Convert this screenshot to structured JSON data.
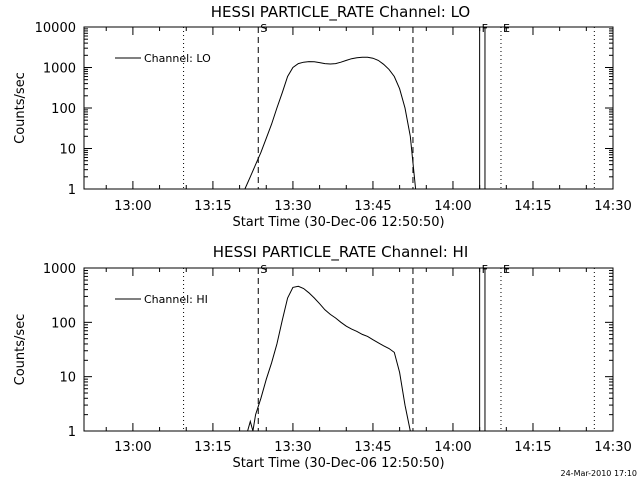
{
  "timestamp": "24-Mar-2010 17:10",
  "chart_data": [
    {
      "type": "line",
      "title": "HESSI PARTICLE_RATE Channel: LO",
      "xlabel": "Start Time (30-Dec-06 12:50:50)",
      "ylabel": "Counts/sec",
      "xlim": [
        "12:50:50",
        "14:30"
      ],
      "ylim": [
        1,
        10000
      ],
      "yscale": "log",
      "xticks": [
        "13:00",
        "13:15",
        "13:30",
        "13:45",
        "14:00",
        "14:15",
        "14:30"
      ],
      "yticks": [
        "1",
        "10",
        "100",
        "1000",
        "10000"
      ],
      "grid": false,
      "legend": "top-left",
      "series": [
        {
          "name": "Channel: LO",
          "x": [
            "13:21",
            "13:22",
            "13:23",
            "13:24",
            "13:25",
            "13:26",
            "13:27",
            "13:28",
            "13:29",
            "13:30",
            "13:31",
            "13:32",
            "13:33",
            "13:34",
            "13:35",
            "13:36",
            "13:37",
            "13:38",
            "13:39",
            "13:40",
            "13:41",
            "13:42",
            "13:43",
            "13:44",
            "13:45",
            "13:46",
            "13:47",
            "13:48",
            "13:49",
            "13:50",
            "13:51",
            "13:52",
            "13:53"
          ],
          "values": [
            1,
            2,
            4,
            8,
            18,
            40,
            100,
            240,
            600,
            1000,
            1250,
            1350,
            1400,
            1380,
            1320,
            1250,
            1220,
            1250,
            1350,
            1500,
            1650,
            1750,
            1800,
            1800,
            1700,
            1500,
            1200,
            900,
            600,
            300,
            100,
            20,
            1
          ]
        }
      ],
      "vertical_markers": [
        {
          "label": "",
          "time": "12:50:50",
          "style": "dotted"
        },
        {
          "label": "S",
          "time": "13:23:30",
          "style": "dashed"
        },
        {
          "label": "",
          "time": "13:52:30",
          "style": "dashed"
        },
        {
          "label": "",
          "time": "13:09:30",
          "style": "dotted"
        },
        {
          "label": "F",
          "time": "14:05:00",
          "style": "solid"
        },
        {
          "label": "",
          "time": "14:06:00",
          "style": "solid"
        },
        {
          "label": "E",
          "time": "14:09:00",
          "style": "dotted"
        },
        {
          "label": "",
          "time": "14:26:30",
          "style": "dotted"
        }
      ]
    },
    {
      "type": "line",
      "title": "HESSI PARTICLE_RATE Channel: HI",
      "xlabel": "Start Time (30-Dec-06 12:50:50)",
      "ylabel": "Counts/sec",
      "xlim": [
        "12:50:50",
        "14:30"
      ],
      "ylim": [
        1,
        1000
      ],
      "yscale": "log",
      "xticks": [
        "13:00",
        "13:15",
        "13:30",
        "13:45",
        "14:00",
        "14:15",
        "14:30"
      ],
      "yticks": [
        "1",
        "10",
        "100",
        "1000"
      ],
      "grid": false,
      "legend": "top-left",
      "series": [
        {
          "name": "Channel: HI",
          "x": [
            "13:21:30",
            "13:22",
            "13:22:30",
            "13:23",
            "13:24",
            "13:25",
            "13:26",
            "13:27",
            "13:28",
            "13:29",
            "13:30",
            "13:31",
            "13:32",
            "13:33",
            "13:34",
            "13:35",
            "13:36",
            "13:37",
            "13:38",
            "13:39",
            "13:40",
            "13:41",
            "13:42",
            "13:43",
            "13:44",
            "13:45",
            "13:46",
            "13:47",
            "13:48",
            "13:49",
            "13:50",
            "13:51",
            "13:52"
          ],
          "values": [
            1,
            1.5,
            1,
            2,
            4,
            9,
            18,
            40,
            110,
            280,
            440,
            460,
            420,
            350,
            280,
            220,
            170,
            140,
            120,
            100,
            85,
            75,
            68,
            60,
            55,
            48,
            42,
            37,
            33,
            28,
            12,
            3,
            1
          ]
        }
      ],
      "vertical_markers": [
        {
          "label": "",
          "time": "12:50:50",
          "style": "dotted"
        },
        {
          "label": "S",
          "time": "13:23:30",
          "style": "dashed"
        },
        {
          "label": "",
          "time": "13:52:30",
          "style": "dashed"
        },
        {
          "label": "",
          "time": "13:09:30",
          "style": "dotted"
        },
        {
          "label": "F",
          "time": "14:05:00",
          "style": "solid"
        },
        {
          "label": "",
          "time": "14:06:00",
          "style": "solid"
        },
        {
          "label": "E",
          "time": "14:09:00",
          "style": "dotted"
        },
        {
          "label": "",
          "time": "14:26:30",
          "style": "dotted"
        }
      ]
    }
  ]
}
